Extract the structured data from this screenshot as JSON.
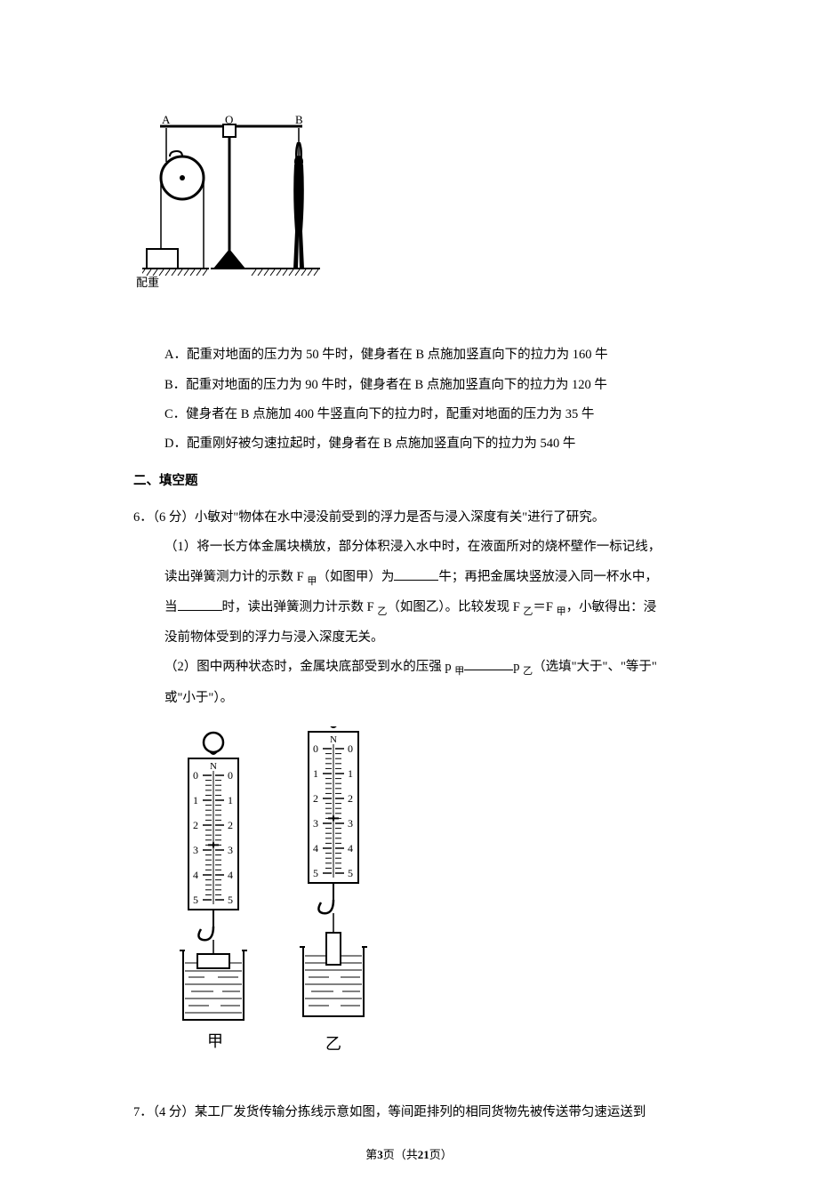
{
  "q5": {
    "figure": {
      "labels": {
        "A": "A",
        "O": "O",
        "B": "B",
        "weight": "配重"
      },
      "colors": {
        "stroke": "#000000",
        "fill_person": "#000000",
        "bg": "#ffffff"
      }
    },
    "options": {
      "A": "A．配重对地面的压力为 50 牛时，健身者在 B 点施加竖直向下的拉力为 160 牛",
      "B": "B．配重对地面的压力为 90 牛时，健身者在 B 点施加竖直向下的拉力为 120 牛",
      "C": "C．健身者在 B 点施加 400 牛竖直向下的拉力时，配重对地面的压力为 35 牛",
      "D": "D．配重刚好被匀速拉起时，健身者在 B 点施加竖直向下的拉力为 540 牛"
    }
  },
  "section2": "二、填空题",
  "q6": {
    "stem": "6．（6 分）小敏对\"物体在水中浸没前受到的浮力是否与浸入深度有关\"进行了研究。",
    "p1a": "（1）将一长方体金属块横放，部分体积浸入水中时，在液面所对的烧杯壁作一标记线，",
    "p1b_prefix": "读出弹簧测力计的示数 F ",
    "p1b_sub1": "甲",
    "p1b_mid": "（如图甲）为",
    "p1b_suffix": "牛；再把金属块竖放浸入同一杯水中，",
    "p1c_prefix": "当",
    "p1c_mid": "时，读出弹簧测力计示数 F ",
    "p1c_sub1": "乙",
    "p1c_mid2": "（如图乙）。比较发现 F ",
    "p1c_sub2": "乙",
    "p1c_eq": "＝F ",
    "p1c_sub3": "甲",
    "p1c_end": "，小敏得出：浸",
    "p1d": "没前物体受到的浮力与浸入深度无关。",
    "p2a_prefix": "（2）图中两种状态时，金属块底部受到水的压强 p ",
    "p2a_sub1": "甲",
    "p2a_mid": "p ",
    "p2a_sub2": "乙",
    "p2a_end": "（选填\"大于\"、\"等于\"",
    "p2b": "或\"小于\"）。",
    "figure": {
      "scale_ticks": [
        "0",
        "1",
        "2",
        "3",
        "4",
        "5"
      ],
      "unit": "N",
      "label_left": "甲",
      "label_right": "乙",
      "colors": {
        "stroke": "#000000",
        "bg": "#ffffff"
      },
      "pointer_jia": 2.8,
      "pointer_yi": 2.8
    }
  },
  "q7": {
    "stem": "7．（4 分）某工厂发货传输分拣线示意如图，等间距排列的相同货物先被传送带匀速运送到"
  },
  "footer": {
    "pre": "第",
    "cur": "3",
    "mid": "页（共",
    "total": "21",
    "post": "页）"
  }
}
